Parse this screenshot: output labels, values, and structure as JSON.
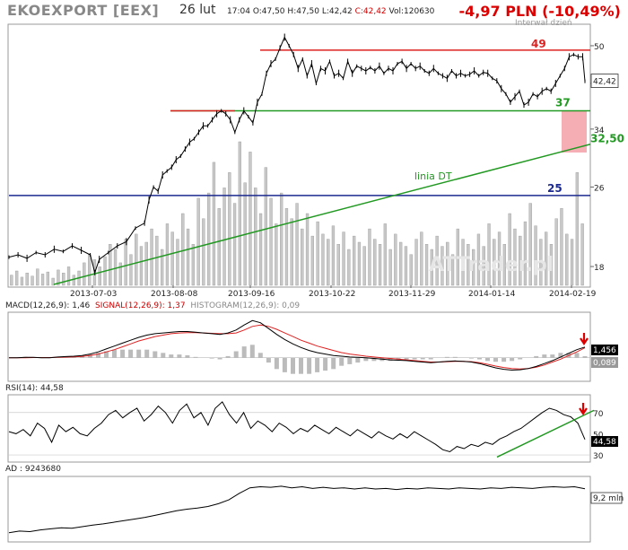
{
  "header": {
    "ticker": "EKOEXPORT [EEX]",
    "date": "26 lut",
    "time": "17:04",
    "open": "O:47,50",
    "high": "H:47,50",
    "low": "L:42,42",
    "close": "C:42,42",
    "volume": "Vol:120630",
    "change": "-4,97 PLN (-10,49%)",
    "interval": "Interwał dzień"
  },
  "colors": {
    "resistance": "#dd2222",
    "support": "#229922",
    "trendline": "#229922",
    "blue_line": "#1c2a8f",
    "volume": "#c8c8c8",
    "price": "#000000",
    "signal": "#dd2222",
    "highlight": "#f5a0a8"
  },
  "chart_data": [
    {
      "type": "candlestick",
      "yaxis_ticks": [
        50,
        42,
        34,
        26,
        18
      ],
      "y_scale": "log",
      "ylim": [
        16.5,
        55
      ],
      "x_tick_labels": [
        "2013-07-03",
        "2013-08-08",
        "2013-09-16",
        "2013-10-22",
        "2013-11-29",
        "2014-01-14",
        "2014-02-19"
      ],
      "last_price_label": "42,42",
      "price_path": [
        [
          0,
          18.8
        ],
        [
          4,
          19.0
        ],
        [
          8,
          18.7
        ],
        [
          12,
          19.2
        ],
        [
          16,
          19.0
        ],
        [
          20,
          19.5
        ],
        [
          24,
          19.3
        ],
        [
          28,
          19.8
        ],
        [
          32,
          19.4
        ],
        [
          36,
          19.0
        ],
        [
          38,
          17.5
        ],
        [
          40,
          18.6
        ],
        [
          44,
          19.2
        ],
        [
          48,
          19.8
        ],
        [
          52,
          20.2
        ],
        [
          56,
          21.5
        ],
        [
          60,
          22.0
        ],
        [
          62,
          24.5
        ],
        [
          64,
          26.0
        ],
        [
          66,
          25.5
        ],
        [
          68,
          27.5
        ],
        [
          70,
          28.0
        ],
        [
          72,
          28.5
        ],
        [
          74,
          29.5
        ],
        [
          76,
          30.0
        ],
        [
          78,
          31.0
        ],
        [
          80,
          32.0
        ],
        [
          82,
          32.5
        ],
        [
          84,
          33.5
        ],
        [
          86,
          34.5
        ],
        [
          88,
          34.5
        ],
        [
          90,
          35.5
        ],
        [
          92,
          36.5
        ],
        [
          94,
          37.0
        ],
        [
          96,
          36.5
        ],
        [
          98,
          35.5
        ],
        [
          100,
          33.5
        ],
        [
          102,
          35.5
        ],
        [
          104,
          37.0
        ],
        [
          106,
          36.0
        ],
        [
          108,
          35.0
        ],
        [
          110,
          38.5
        ],
        [
          112,
          40.0
        ],
        [
          114,
          44.0
        ],
        [
          116,
          46.0
        ],
        [
          118,
          47.0
        ],
        [
          120,
          49.5
        ],
        [
          122,
          52.0
        ],
        [
          124,
          50.0
        ],
        [
          126,
          48.0
        ],
        [
          128,
          45.0
        ],
        [
          130,
          47.0
        ],
        [
          132,
          43.5
        ],
        [
          134,
          46.0
        ],
        [
          136,
          42.0
        ],
        [
          138,
          45.0
        ],
        [
          140,
          44.5
        ],
        [
          142,
          46.5
        ],
        [
          144,
          43.5
        ],
        [
          146,
          44.0
        ],
        [
          148,
          43.0
        ],
        [
          150,
          46.5
        ],
        [
          152,
          44.0
        ],
        [
          154,
          45.5
        ],
        [
          156,
          45.0
        ],
        [
          158,
          44.5
        ],
        [
          160,
          45.2
        ],
        [
          162,
          44.5
        ],
        [
          164,
          45.5
        ],
        [
          166,
          44.0
        ],
        [
          168,
          45.0
        ],
        [
          170,
          44.5
        ],
        [
          172,
          46.0
        ],
        [
          174,
          46.5
        ],
        [
          176,
          45.0
        ],
        [
          178,
          46.0
        ],
        [
          180,
          45.0
        ],
        [
          182,
          45.5
        ],
        [
          184,
          44.5
        ],
        [
          186,
          44.0
        ],
        [
          188,
          45.0
        ],
        [
          190,
          44.0
        ],
        [
          192,
          43.5
        ],
        [
          194,
          43.0
        ],
        [
          196,
          44.5
        ],
        [
          198,
          43.5
        ],
        [
          200,
          44.0
        ],
        [
          202,
          43.5
        ],
        [
          204,
          43.8
        ],
        [
          206,
          44.5
        ],
        [
          208,
          43.5
        ],
        [
          210,
          44.2
        ],
        [
          212,
          44.0
        ],
        [
          214,
          43.0
        ],
        [
          216,
          42.5
        ],
        [
          218,
          41.0
        ],
        [
          220,
          40.0
        ],
        [
          222,
          38.5
        ],
        [
          224,
          39.5
        ],
        [
          226,
          40.5
        ],
        [
          228,
          38.0
        ],
        [
          230,
          38.5
        ],
        [
          232,
          40.0
        ],
        [
          234,
          39.5
        ],
        [
          236,
          40.5
        ],
        [
          238,
          41.0
        ],
        [
          240,
          40.5
        ],
        [
          242,
          42.0
        ],
        [
          244,
          43.5
        ],
        [
          246,
          45.0
        ],
        [
          248,
          47.5
        ],
        [
          250,
          48.0
        ],
        [
          252,
          47.5
        ],
        [
          254,
          47.5
        ],
        [
          255,
          42.42
        ]
      ],
      "volume_bars": [
        10,
        14,
        8,
        12,
        9,
        16,
        11,
        13,
        7,
        15,
        12,
        18,
        10,
        14,
        22,
        30,
        25,
        18,
        28,
        40,
        35,
        22,
        45,
        30,
        50,
        38,
        42,
        55,
        48,
        35,
        60,
        52,
        45,
        70,
        55,
        40,
        85,
        65,
        90,
        120,
        75,
        95,
        110,
        80,
        140,
        100,
        130,
        95,
        70,
        115,
        85,
        60,
        90,
        75,
        65,
        80,
        55,
        70,
        48,
        62,
        50,
        45,
        58,
        40,
        52,
        35,
        48,
        42,
        38,
        55,
        45,
        40,
        60,
        35,
        50,
        42,
        38,
        30,
        45,
        52,
        40,
        35,
        48,
        38,
        42,
        30,
        55,
        45,
        40,
        35,
        50,
        38,
        60,
        45,
        52,
        40,
        70,
        55,
        48,
        62,
        80,
        58,
        45,
        52,
        40,
        65,
        75,
        50,
        45,
        110,
        60
      ]
    },
    {
      "type": "line",
      "title": "MACD(12,26,9): 1,46",
      "signal_label": "SIGNAL(12,26,9): 1,37",
      "histogram_label": "HISTOGRAM(12,26,9): 0,09",
      "macd_value": "1,456",
      "histogram_value": "0,089",
      "ylim": [
        -3,
        6
      ],
      "macd": [
        0,
        0,
        0.05,
        0.05,
        0,
        0,
        0.1,
        0.15,
        0.2,
        0.3,
        0.5,
        0.8,
        1.2,
        1.6,
        2.0,
        2.4,
        2.8,
        3.1,
        3.3,
        3.4,
        3.5,
        3.6,
        3.6,
        3.5,
        3.4,
        3.3,
        3.2,
        3.4,
        3.8,
        4.5,
        5.1,
        4.8,
        4.0,
        3.2,
        2.5,
        1.9,
        1.4,
        1.0,
        0.7,
        0.5,
        0.3,
        0.2,
        0.1,
        0.05,
        0,
        -0.1,
        -0.2,
        -0.3,
        -0.35,
        -0.4,
        -0.5,
        -0.6,
        -0.7,
        -0.6,
        -0.5,
        -0.45,
        -0.5,
        -0.6,
        -0.8,
        -1.1,
        -1.4,
        -1.6,
        -1.7,
        -1.65,
        -1.5,
        -1.2,
        -0.8,
        -0.4,
        0.1,
        0.6,
        1.1,
        1.46
      ],
      "signal": [
        0,
        0,
        0,
        0.02,
        0.02,
        0.02,
        0.05,
        0.08,
        0.12,
        0.18,
        0.3,
        0.5,
        0.8,
        1.1,
        1.5,
        1.9,
        2.3,
        2.6,
        2.9,
        3.1,
        3.3,
        3.4,
        3.45,
        3.45,
        3.4,
        3.35,
        3.3,
        3.3,
        3.4,
        3.8,
        4.3,
        4.5,
        4.3,
        3.9,
        3.4,
        2.9,
        2.4,
        2.0,
        1.6,
        1.3,
        1.0,
        0.7,
        0.5,
        0.35,
        0.2,
        0.1,
        0,
        -0.1,
        -0.2,
        -0.3,
        -0.4,
        -0.5,
        -0.6,
        -0.6,
        -0.55,
        -0.5,
        -0.5,
        -0.55,
        -0.7,
        -0.9,
        -1.15,
        -1.35,
        -1.5,
        -1.55,
        -1.5,
        -1.3,
        -1.0,
        -0.6,
        -0.2,
        0.3,
        0.8,
        1.37
      ]
    },
    {
      "type": "line",
      "title": "RSI(14): 44,58",
      "value_label": "44,58",
      "yaxis_ticks": [
        70,
        50,
        30
      ],
      "ylim": [
        25,
        85
      ],
      "values": [
        52,
        50,
        54,
        48,
        60,
        55,
        42,
        58,
        52,
        56,
        50,
        48,
        55,
        60,
        68,
        72,
        65,
        70,
        74,
        62,
        68,
        76,
        70,
        60,
        72,
        78,
        65,
        70,
        58,
        74,
        80,
        68,
        60,
        70,
        55,
        62,
        58,
        52,
        60,
        56,
        50,
        55,
        52,
        58,
        54,
        50,
        56,
        52,
        48,
        54,
        50,
        46,
        52,
        48,
        45,
        50,
        46,
        52,
        48,
        44,
        40,
        35,
        33,
        38,
        36,
        40,
        38,
        42,
        40,
        45,
        48,
        52,
        55,
        60,
        65,
        70,
        74,
        72,
        68,
        66,
        60,
        44.58
      ]
    },
    {
      "type": "line",
      "title": "AD : 9243680",
      "value_label": "9,2 mln",
      "values": [
        1.2,
        1.5,
        1.4,
        1.7,
        1.9,
        2.1,
        2.0,
        2.3,
        2.6,
        2.8,
        3.1,
        3.4,
        3.7,
        4.0,
        4.4,
        4.8,
        5.2,
        5.5,
        5.7,
        6.0,
        6.5,
        7.2,
        8.4,
        9.4,
        9.6,
        9.5,
        9.7,
        9.4,
        9.6,
        9.3,
        9.5,
        9.3,
        9.4,
        9.2,
        9.4,
        9.2,
        9.3,
        9.1,
        9.3,
        9.2,
        9.4,
        9.3,
        9.2,
        9.4,
        9.3,
        9.2,
        9.4,
        9.3,
        9.5,
        9.4,
        9.3,
        9.5,
        9.6,
        9.5,
        9.6,
        9.24
      ]
    }
  ],
  "annotations": {
    "resistance_label": "49",
    "support_label": "37",
    "trendline_label": "linia DT",
    "trend_value_label": "32,50",
    "blue_label": "25",
    "watermark": "ATTrader.pl"
  }
}
